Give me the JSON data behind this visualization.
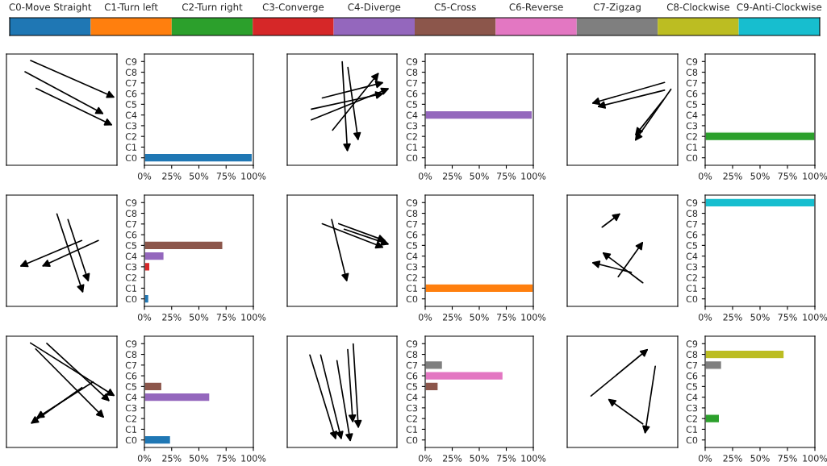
{
  "chart_data": [
    {
      "type": "other",
      "categories": [
        "C0-Move Straight",
        "C1-Turn left",
        "C2-Turn right",
        "C3-Converge",
        "C4-Diverge",
        "C5-Cross",
        "C6-Reverse",
        "C7-Zigzag",
        "C8-Clockwise",
        "C9-Anti-Clockwise"
      ],
      "colors": [
        "#1f77b4",
        "#ff7f0e",
        "#2ca02c",
        "#d62728",
        "#9467bd",
        "#8c564b",
        "#e377c2",
        "#7f7f7f",
        "#bcbd22",
        "#17becf"
      ]
    },
    {
      "type": "bar",
      "orientation": "horizontal",
      "categories": [
        "C9",
        "C8",
        "C7",
        "C6",
        "C5",
        "C4",
        "C3",
        "C2",
        "C1",
        "C0"
      ],
      "values": [
        null,
        null,
        null,
        null,
        null,
        0.5,
        null,
        null,
        null,
        99
      ],
      "colors": [
        "#17becf",
        "#bcbd22",
        "#7f7f7f",
        "#e377c2",
        "#8c564b",
        "#9467bd",
        "#d62728",
        "#2ca02c",
        "#ff7f0e",
        "#1f77b4"
      ],
      "xlim": [
        0,
        100
      ],
      "xticks": [
        {
          "value": 0,
          "label": "0%"
        },
        {
          "value": 25,
          "label": "25%"
        },
        {
          "value": 50,
          "label": "50%"
        },
        {
          "value": 75,
          "label": "75%"
        },
        {
          "value": 100,
          "label": "100%"
        }
      ]
    },
    {
      "type": "bar",
      "orientation": "horizontal",
      "categories": [
        "C9",
        "C8",
        "C7",
        "C6",
        "C5",
        "C4",
        "C3",
        "C2",
        "C1",
        "C0"
      ],
      "values": [
        null,
        null,
        null,
        null,
        1,
        99,
        null,
        null,
        null,
        null
      ],
      "colors": [
        "#17becf",
        "#bcbd22",
        "#7f7f7f",
        "#e377c2",
        "#8c564b",
        "#9467bd",
        "#d62728",
        "#2ca02c",
        "#ff7f0e",
        "#1f77b4"
      ],
      "xlim": [
        0,
        100
      ],
      "xticks": [
        {
          "value": 0,
          "label": "0%"
        },
        {
          "value": 25,
          "label": "25%"
        },
        {
          "value": 50,
          "label": "50%"
        },
        {
          "value": 75,
          "label": "75%"
        },
        {
          "value": 100,
          "label": "100%"
        }
      ]
    },
    {
      "type": "bar",
      "orientation": "horizontal",
      "categories": [
        "C9",
        "C8",
        "C7",
        "C6",
        "C5",
        "C4",
        "C3",
        "C2",
        "C1",
        "C0"
      ],
      "values": [
        null,
        null,
        null,
        null,
        null,
        null,
        null,
        100,
        null,
        null
      ],
      "colors": [
        "#17becf",
        "#bcbd22",
        "#7f7f7f",
        "#e377c2",
        "#8c564b",
        "#9467bd",
        "#d62728",
        "#2ca02c",
        "#ff7f0e",
        "#1f77b4"
      ],
      "xlim": [
        0,
        100
      ],
      "xticks": [
        {
          "value": 0,
          "label": "0%"
        },
        {
          "value": 25,
          "label": "25%"
        },
        {
          "value": 50,
          "label": "50%"
        },
        {
          "value": 75,
          "label": "75%"
        },
        {
          "value": 100,
          "label": "100%"
        }
      ]
    },
    {
      "type": "bar",
      "orientation": "horizontal",
      "categories": [
        "C9",
        "C8",
        "C7",
        "C6",
        "C5",
        "C4",
        "C3",
        "C2",
        "C1",
        "C0"
      ],
      "values": [
        null,
        null,
        null,
        null,
        72,
        18,
        5,
        null,
        null,
        4
      ],
      "colors": [
        "#17becf",
        "#bcbd22",
        "#7f7f7f",
        "#e377c2",
        "#8c564b",
        "#9467bd",
        "#d62728",
        "#2ca02c",
        "#ff7f0e",
        "#1f77b4"
      ],
      "xlim": [
        0,
        100
      ],
      "xticks": [
        {
          "value": 0,
          "label": "0%"
        },
        {
          "value": 25,
          "label": "25%"
        },
        {
          "value": 50,
          "label": "50%"
        },
        {
          "value": 75,
          "label": "75%"
        },
        {
          "value": 100,
          "label": "100%"
        }
      ]
    },
    {
      "type": "bar",
      "orientation": "horizontal",
      "categories": [
        "C9",
        "C8",
        "C7",
        "C6",
        "C5",
        "C4",
        "C3",
        "C2",
        "C1",
        "C0"
      ],
      "values": [
        null,
        null,
        null,
        null,
        null,
        null,
        null,
        null,
        100,
        null
      ],
      "colors": [
        "#17becf",
        "#bcbd22",
        "#7f7f7f",
        "#e377c2",
        "#8c564b",
        "#9467bd",
        "#d62728",
        "#2ca02c",
        "#ff7f0e",
        "#1f77b4"
      ],
      "xlim": [
        0,
        100
      ],
      "xticks": [
        {
          "value": 0,
          "label": "0%"
        },
        {
          "value": 25,
          "label": "25%"
        },
        {
          "value": 50,
          "label": "50%"
        },
        {
          "value": 75,
          "label": "75%"
        },
        {
          "value": 100,
          "label": "100%"
        }
      ]
    },
    {
      "type": "bar",
      "orientation": "horizontal",
      "categories": [
        "C9",
        "C8",
        "C7",
        "C6",
        "C5",
        "C4",
        "C3",
        "C2",
        "C1",
        "C0"
      ],
      "values": [
        100,
        null,
        null,
        null,
        null,
        null,
        null,
        null,
        null,
        null
      ],
      "colors": [
        "#17becf",
        "#bcbd22",
        "#7f7f7f",
        "#e377c2",
        "#8c564b",
        "#9467bd",
        "#d62728",
        "#2ca02c",
        "#ff7f0e",
        "#1f77b4"
      ],
      "xlim": [
        0,
        100
      ],
      "xticks": [
        {
          "value": 0,
          "label": "0%"
        },
        {
          "value": 25,
          "label": "25%"
        },
        {
          "value": 50,
          "label": "50%"
        },
        {
          "value": 75,
          "label": "75%"
        },
        {
          "value": 100,
          "label": "100%"
        }
      ]
    },
    {
      "type": "bar",
      "orientation": "horizontal",
      "categories": [
        "C9",
        "C8",
        "C7",
        "C6",
        "C5",
        "C4",
        "C3",
        "C2",
        "C1",
        "C0"
      ],
      "values": [
        null,
        null,
        null,
        null,
        16,
        60,
        null,
        null,
        null,
        24
      ],
      "colors": [
        "#17becf",
        "#bcbd22",
        "#7f7f7f",
        "#e377c2",
        "#8c564b",
        "#9467bd",
        "#d62728",
        "#2ca02c",
        "#ff7f0e",
        "#1f77b4"
      ],
      "xlim": [
        0,
        100
      ],
      "xticks": [
        {
          "value": 0,
          "label": "0%"
        },
        {
          "value": 25,
          "label": "25%"
        },
        {
          "value": 50,
          "label": "50%"
        },
        {
          "value": 75,
          "label": "75%"
        },
        {
          "value": 100,
          "label": "100%"
        }
      ]
    },
    {
      "type": "bar",
      "orientation": "horizontal",
      "categories": [
        "C9",
        "C8",
        "C7",
        "C6",
        "C5",
        "C4",
        "C3",
        "C2",
        "C1",
        "C0"
      ],
      "values": [
        null,
        null,
        16,
        72,
        12,
        null,
        null,
        null,
        1,
        null
      ],
      "colors": [
        "#17becf",
        "#bcbd22",
        "#7f7f7f",
        "#e377c2",
        "#8c564b",
        "#9467bd",
        "#d62728",
        "#2ca02c",
        "#ff7f0e",
        "#1f77b4"
      ],
      "xlim": [
        0,
        100
      ],
      "xticks": [
        {
          "value": 0,
          "label": "0%"
        },
        {
          "value": 25,
          "label": "25%"
        },
        {
          "value": 50,
          "label": "50%"
        },
        {
          "value": 75,
          "label": "75%"
        },
        {
          "value": 100,
          "label": "100%"
        }
      ]
    },
    {
      "type": "bar",
      "orientation": "horizontal",
      "categories": [
        "C9",
        "C8",
        "C7",
        "C6",
        "C5",
        "C4",
        "C3",
        "C2",
        "C1",
        "C0"
      ],
      "values": [
        null,
        72,
        15,
        null,
        null,
        null,
        null,
        13,
        null,
        null
      ],
      "colors": [
        "#17becf",
        "#bcbd22",
        "#7f7f7f",
        "#e377c2",
        "#8c564b",
        "#9467bd",
        "#d62728",
        "#2ca02c",
        "#ff7f0e",
        "#1f77b4"
      ],
      "xlim": [
        0,
        100
      ],
      "xticks": [
        {
          "value": 0,
          "label": "0%"
        },
        {
          "value": 25,
          "label": "25%"
        },
        {
          "value": 50,
          "label": "50%"
        },
        {
          "value": 75,
          "label": "75%"
        },
        {
          "value": 100,
          "label": "100%"
        }
      ]
    }
  ]
}
